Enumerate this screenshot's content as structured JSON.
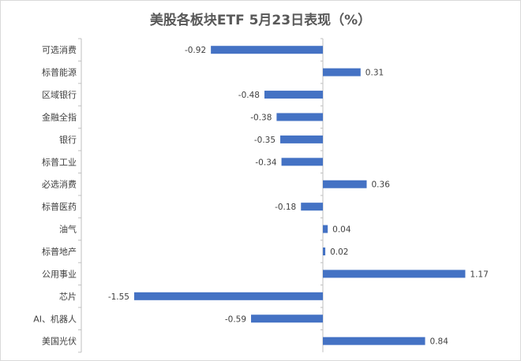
{
  "chart_data": {
    "type": "bar",
    "orientation": "horizontal",
    "title": "美股各板块ETF  5月23日表现（%）",
    "categories": [
      "可选消费",
      "标普能源",
      "区域银行",
      "金融全指",
      "银行",
      "标普工业",
      "必选消费",
      "标普医药",
      "油气",
      "标普地产",
      "公用事业",
      "芯片",
      "AI、机器人",
      "美国光伏"
    ],
    "values": [
      -0.92,
      0.31,
      -0.48,
      -0.38,
      -0.35,
      -0.34,
      0.36,
      -0.18,
      0.04,
      0.02,
      1.17,
      -1.55,
      -0.59,
      0.84
    ],
    "data_labels": [
      "-0.92",
      "0.31",
      "-0.48",
      "-0.38",
      "-0.35",
      "-0.34",
      "0.36",
      "-0.18",
      "0.04",
      "0.02",
      "1.17",
      "-1.55",
      "-0.59",
      "0.84"
    ],
    "xlabel": "",
    "ylabel": "",
    "grid": false,
    "bar_color": "#4472c4"
  }
}
